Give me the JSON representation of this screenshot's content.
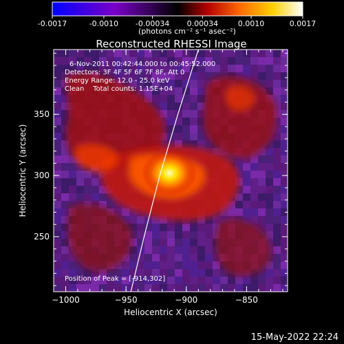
{
  "colorbar": {
    "ticks": [
      "-0.0017",
      "-0.0010",
      "-0.00034",
      "0.00034",
      "0.0010",
      "0.0017"
    ],
    "tick_values": [
      -0.0017,
      -0.001,
      -0.00034,
      0.00034,
      0.001,
      0.0017
    ],
    "unit_label": "(photons cm⁻² s⁻¹ asec⁻²)",
    "range": [
      -0.0017,
      0.0017
    ],
    "colors": [
      "#0000ff",
      "#7a00c8",
      "#000000",
      "#b40000",
      "#ff6a00",
      "#ffd000",
      "#ffffff"
    ]
  },
  "chart_data": {
    "type": "heatmap",
    "title": "Reconstructed RHESSI Image",
    "xlabel": "Heliocentric X (arcsec)",
    "ylabel": "Heliocentric Y (arcsec)",
    "xlim": [
      -1010,
      -816
    ],
    "ylim": [
      205,
      403
    ],
    "xticks": [
      -1000,
      -950,
      -900,
      -850
    ],
    "xtick_labels": [
      "−1000",
      "−950",
      "−900",
      "−850"
    ],
    "yticks": [
      250,
      300,
      350
    ],
    "ytick_labels": [
      "250",
      "300",
      "350"
    ],
    "peak": [
      -914,
      302
    ],
    "limb_points": [
      [
        -946,
        205
      ],
      [
        -935,
        250
      ],
      [
        -922,
        300
      ],
      [
        -907,
        350
      ],
      [
        -890,
        403
      ]
    ],
    "info_lines": [
      "6-Nov-2011 00:42:44.000 to 00:45:52.000",
      "Detectors: 3F 4F 5F 6F 7F 8F, Att 0",
      "Energy Range: 12.0 - 25.0 keV",
      "Clean    Total counts: 1.15E+04"
    ],
    "peak_label": "Position of Peak = [-914,302]",
    "grid": false
  },
  "footer": {
    "timestamp": "15-May-2022 22:24"
  }
}
